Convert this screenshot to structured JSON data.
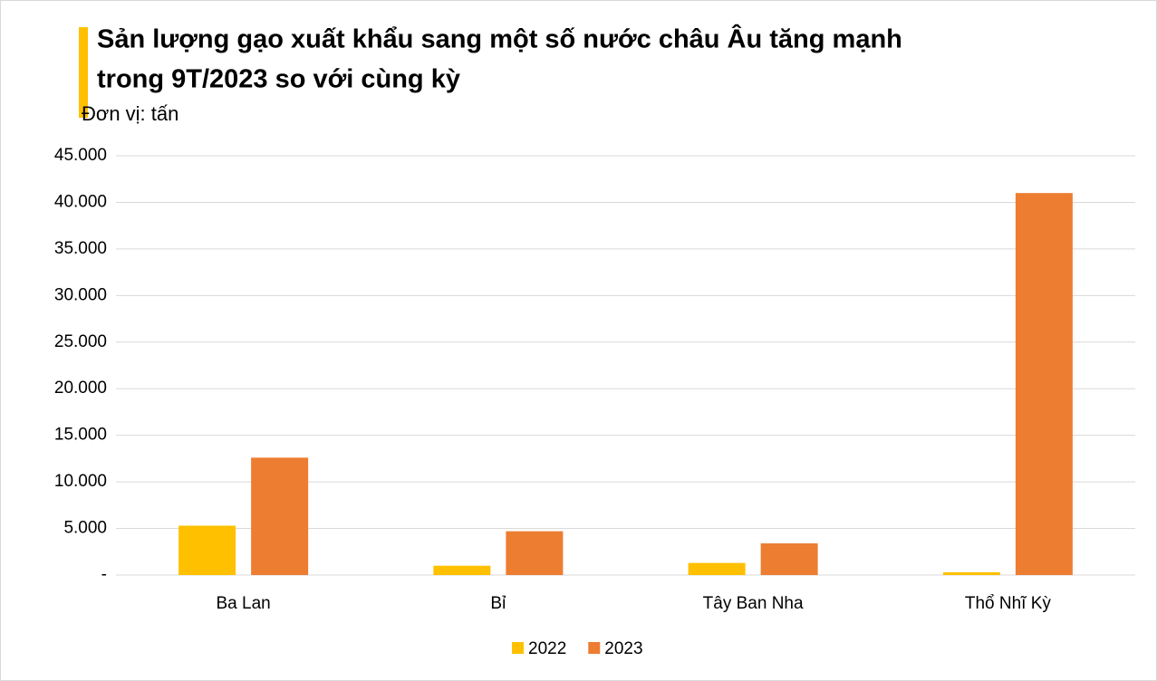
{
  "chart_data": {
    "type": "bar",
    "title": [
      "Sản lượng gạo xuất khẩu sang một số nước châu Âu tăng mạnh",
      "trong 9T/2023 so với cùng kỳ"
    ],
    "subtitle": "Đơn vị: tấn",
    "categories": [
      "Ba Lan",
      "Bỉ",
      "Tây Ban Nha",
      "Thổ Nhĩ Kỳ"
    ],
    "series": [
      {
        "name": "2022",
        "color": "#FFC000",
        "values": [
          5300,
          1000,
          1300,
          300
        ]
      },
      {
        "name": "2023",
        "color": "#ED7D31",
        "values": [
          12600,
          4700,
          3400,
          41000
        ]
      }
    ],
    "ylim": [
      0,
      45000
    ],
    "yticks": [
      {
        "value": 0,
        "label": "-"
      },
      {
        "value": 5000,
        "label": "5.000"
      },
      {
        "value": 10000,
        "label": "10.000"
      },
      {
        "value": 15000,
        "label": "15.000"
      },
      {
        "value": 20000,
        "label": "20.000"
      },
      {
        "value": 25000,
        "label": "25.000"
      },
      {
        "value": 30000,
        "label": "30.000"
      },
      {
        "value": 35000,
        "label": "35.000"
      },
      {
        "value": 40000,
        "label": "40.000"
      },
      {
        "value": 45000,
        "label": "45.000"
      }
    ],
    "grid": true,
    "legend": "bottom"
  }
}
